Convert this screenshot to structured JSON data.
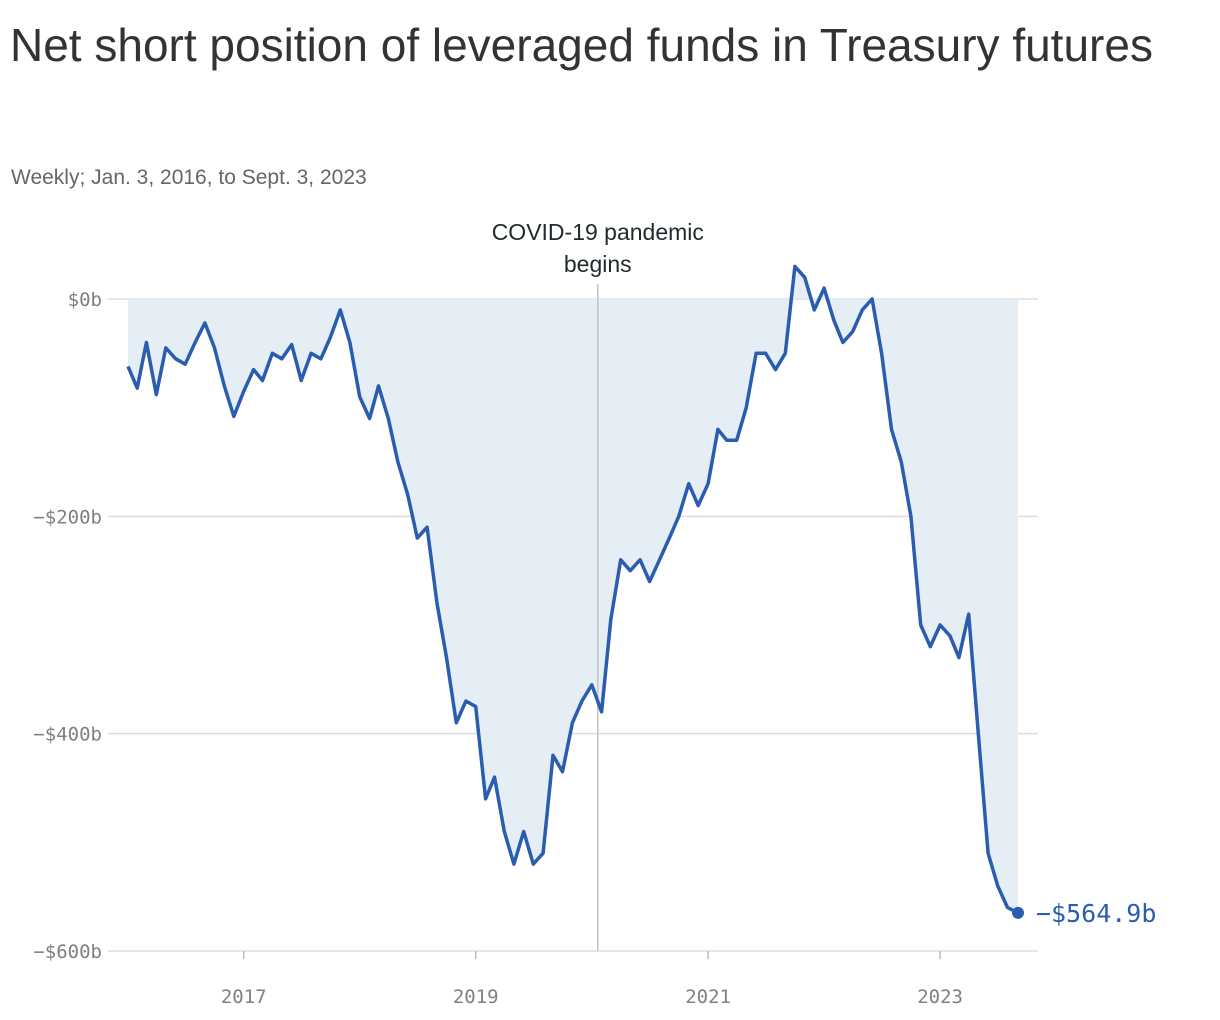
{
  "title": "Net short position of leveraged funds in Treasury futures",
  "subtitle": "Weekly; Jan. 3, 2016, to Sept. 3, 2023",
  "colors": {
    "line": "#2a5cb0",
    "area": "#e5eef5",
    "grid": "#dddddd",
    "annotation_line": "#c4c4c4"
  },
  "chart_data": {
    "type": "area",
    "ylim": [
      -600,
      0
    ],
    "xlim": [
      "2016-01-03",
      "2023-09-03"
    ],
    "y_ticks": [
      {
        "value": 0,
        "label": "$0b"
      },
      {
        "value": -200,
        "label": "−$200b"
      },
      {
        "value": -400,
        "label": "−$400b"
      },
      {
        "value": -600,
        "label": "−$600b"
      }
    ],
    "x_ticks": [
      {
        "value": "2017-01-01",
        "label": "2017"
      },
      {
        "value": "2019-01-01",
        "label": "2019"
      },
      {
        "value": "2021-01-01",
        "label": "2021"
      },
      {
        "value": "2023-01-01",
        "label": "2023"
      }
    ],
    "annotation": {
      "date": "2020-01-20",
      "label_line1": "COVID-19 pandemic",
      "label_line2": "begins"
    },
    "end_label": "−$564.9b",
    "series": [
      {
        "x": [
          "2016-01-03",
          "2016-02-01",
          "2016-03-01",
          "2016-04-01",
          "2016-05-01",
          "2016-06-01",
          "2016-07-01",
          "2016-08-01",
          "2016-09-01",
          "2016-10-01",
          "2016-11-01",
          "2016-12-01",
          "2017-01-01",
          "2017-02-01",
          "2017-03-01",
          "2017-04-01",
          "2017-05-01",
          "2017-06-01",
          "2017-07-01",
          "2017-08-01",
          "2017-09-01",
          "2017-10-01",
          "2017-11-01",
          "2017-12-01",
          "2018-01-01",
          "2018-02-01",
          "2018-03-01",
          "2018-04-01",
          "2018-05-01",
          "2018-06-01",
          "2018-07-01",
          "2018-08-01",
          "2018-09-01",
          "2018-10-01",
          "2018-11-01",
          "2018-12-01",
          "2019-01-01",
          "2019-02-01",
          "2019-03-01",
          "2019-04-01",
          "2019-05-01",
          "2019-06-01",
          "2019-07-01",
          "2019-08-01",
          "2019-09-01",
          "2019-10-01",
          "2019-11-01",
          "2019-12-01",
          "2020-01-01",
          "2020-02-01",
          "2020-03-01",
          "2020-04-01",
          "2020-05-01",
          "2020-06-01",
          "2020-07-01",
          "2020-08-01",
          "2020-09-01",
          "2020-10-01",
          "2020-11-01",
          "2020-12-01",
          "2021-01-01",
          "2021-02-01",
          "2021-03-01",
          "2021-04-01",
          "2021-05-01",
          "2021-06-01",
          "2021-07-01",
          "2021-08-01",
          "2021-09-01",
          "2021-10-01",
          "2021-11-01",
          "2021-12-01",
          "2022-01-01",
          "2022-02-01",
          "2022-03-01",
          "2022-04-01",
          "2022-05-01",
          "2022-06-01",
          "2022-07-01",
          "2022-08-01",
          "2022-09-01",
          "2022-10-01",
          "2022-11-01",
          "2022-12-01",
          "2023-01-01",
          "2023-02-01",
          "2023-03-01",
          "2023-04-01",
          "2023-05-01",
          "2023-06-01",
          "2023-07-01",
          "2023-08-01",
          "2023-09-03"
        ],
        "values": [
          -62,
          -82,
          -40,
          -88,
          -45,
          -55,
          -60,
          -40,
          -22,
          -45,
          -80,
          -108,
          -85,
          -65,
          -75,
          -50,
          -55,
          -42,
          -75,
          -50,
          -55,
          -35,
          -10,
          -40,
          -90,
          -110,
          -80,
          -110,
          -150,
          -180,
          -220,
          -210,
          -280,
          -330,
          -390,
          -370,
          -375,
          -460,
          -440,
          -490,
          -520,
          -490,
          -520,
          -510,
          -420,
          -435,
          -390,
          -370,
          -355,
          -380,
          -295,
          -240,
          -250,
          -240,
          -260,
          -240,
          -220,
          -200,
          -170,
          -190,
          -170,
          -120,
          -130,
          -130,
          -100,
          -50,
          -50,
          -65,
          -50,
          30,
          20,
          -10,
          10,
          -20,
          -40,
          -30,
          -10,
          0,
          -50,
          -120,
          -150,
          -200,
          -300,
          -320,
          -300,
          -310,
          -330,
          -290,
          -400,
          -510,
          -540,
          -560,
          -564.9
        ]
      }
    ]
  }
}
